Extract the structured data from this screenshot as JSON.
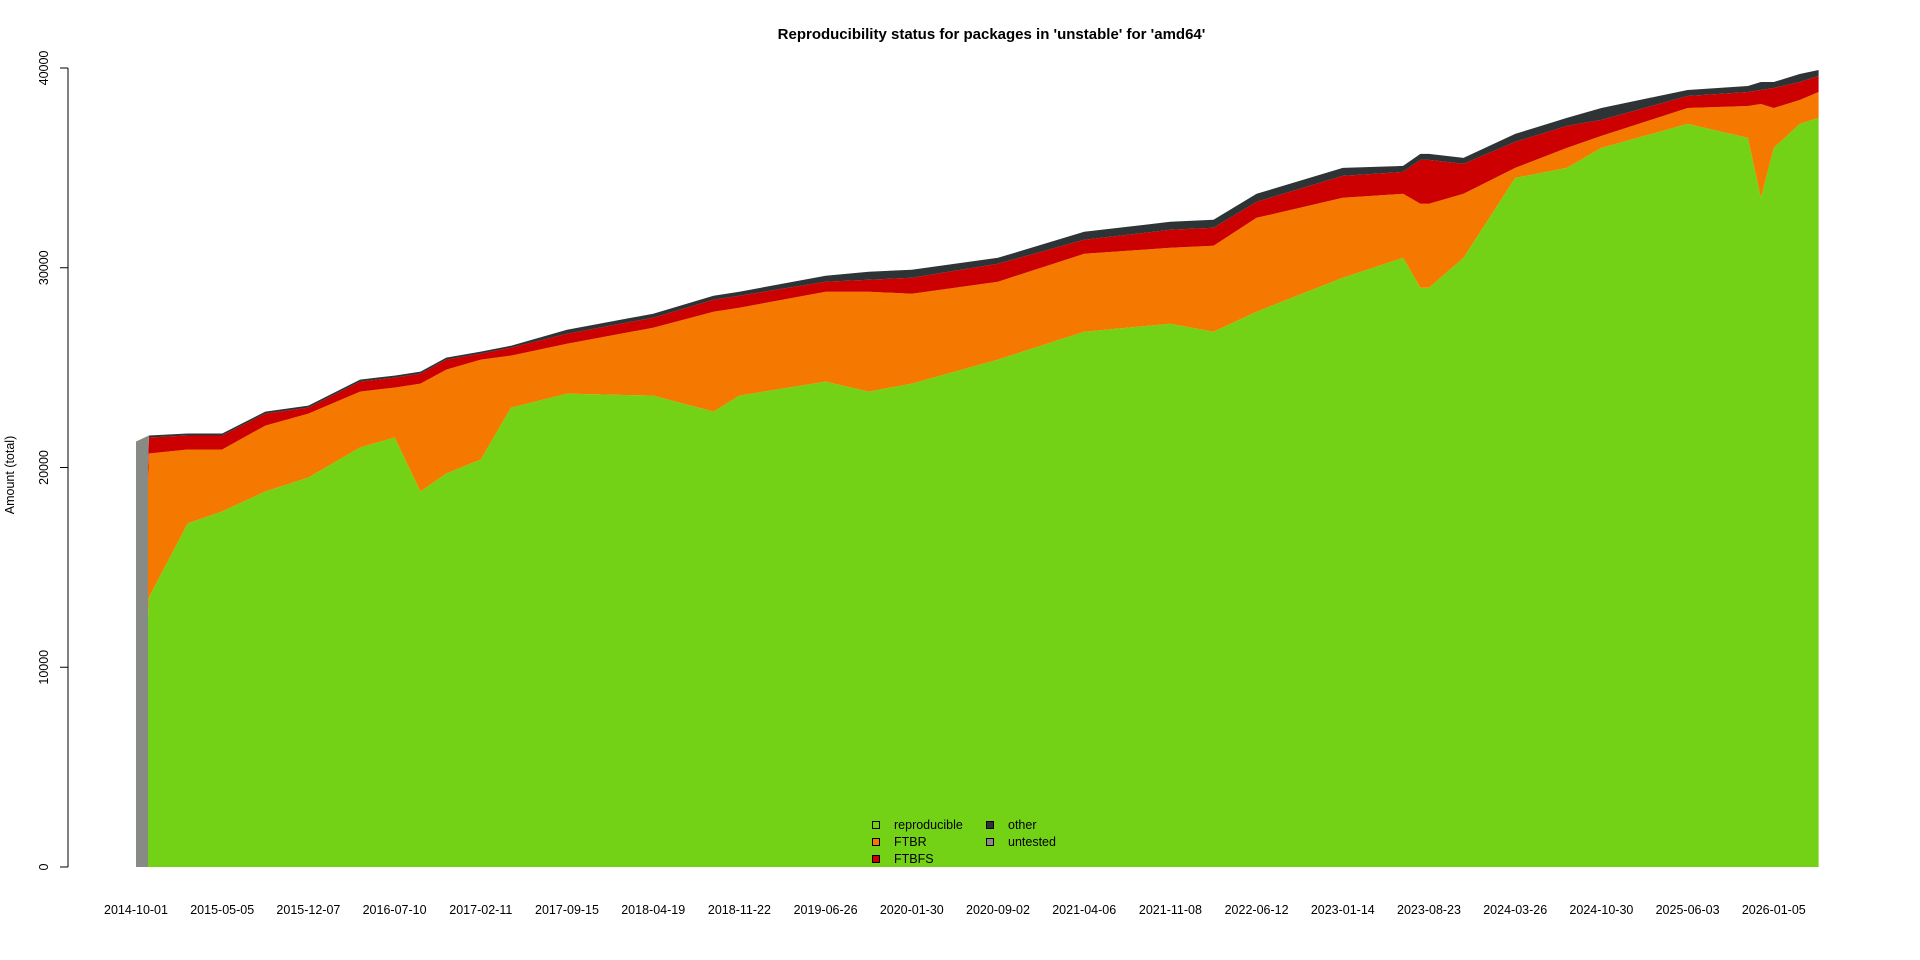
{
  "chart_data": {
    "type": "area",
    "stacked": true,
    "title": "Reproducibility status for packages in 'unstable' for 'amd64'",
    "xlabel": "",
    "ylabel": "Amount (total)",
    "ylim": [
      0,
      40000
    ],
    "yticks": [
      0,
      10000,
      20000,
      30000,
      40000
    ],
    "xtick_labels": [
      "2014-10-01",
      "2015-05-05",
      "2015-12-07",
      "2016-07-10",
      "2017-02-11",
      "2017-09-15",
      "2018-04-19",
      "2018-11-22",
      "2019-06-26",
      "2020-01-30",
      "2020-09-02",
      "2021-04-06",
      "2021-11-08",
      "2022-06-12",
      "2023-01-14",
      "2023-08-23",
      "2024-03-26",
      "2024-10-30",
      "2025-06-03",
      "2026-01-05"
    ],
    "grid": false,
    "legend_position": "bottom-center",
    "legend": [
      {
        "label": "reproducible",
        "color": "#73d216"
      },
      {
        "label": "FTBR",
        "color": "#f57900"
      },
      {
        "label": "FTBFS",
        "color": "#cc0000"
      },
      {
        "label": "other",
        "color": "#2e3436"
      },
      {
        "label": "untested",
        "color": "#888a85"
      }
    ],
    "x": [
      0,
      0.15,
      0.6,
      1.0,
      1.5,
      2.0,
      2.6,
      3.0,
      3.3,
      3.6,
      4.0,
      4.35,
      5.0,
      6.0,
      6.7,
      7.0,
      8.0,
      8.5,
      9.0,
      10.0,
      11.0,
      12.0,
      12.5,
      13.0,
      14.0,
      14.7,
      14.9,
      15.0,
      15.4,
      16.0,
      16.6,
      17.0,
      18.0,
      18.7,
      18.85,
      19.0,
      19.3,
      19.52
    ],
    "series": [
      {
        "name": "reproducible",
        "values": [
          0,
          13500,
          17200,
          17800,
          18800,
          19500,
          21000,
          21500,
          18800,
          19700,
          20400,
          23000,
          23700,
          23600,
          22800,
          23600,
          24300,
          23800,
          24200,
          25400,
          26800,
          27200,
          26800,
          27800,
          29500,
          30500,
          29000,
          29000,
          30500,
          34500,
          35000,
          36000,
          37200,
          36500,
          33500,
          36000,
          37200,
          37500
        ]
      },
      {
        "name": "FTBR",
        "values": [
          0,
          7200,
          3700,
          3100,
          3300,
          3200,
          2800,
          2500,
          5400,
          5200,
          5000,
          2600,
          2500,
          3400,
          5000,
          4400,
          4500,
          5000,
          4500,
          3900,
          3900,
          3800,
          4300,
          4700,
          4000,
          3200,
          4200,
          4200,
          3200,
          500,
          1000,
          600,
          800,
          1600,
          4700,
          2000,
          1200,
          1300
        ]
      },
      {
        "name": "FTBFS",
        "values": [
          0,
          800,
          700,
          700,
          600,
          300,
          500,
          500,
          500,
          500,
          300,
          400,
          500,
          500,
          600,
          600,
          500,
          600,
          800,
          900,
          700,
          900,
          900,
          800,
          1100,
          1100,
          2200,
          2200,
          1500,
          1300,
          1100,
          800,
          600,
          700,
          700,
          1000,
          900,
          800
        ]
      },
      {
        "name": "other",
        "values": [
          0,
          100,
          100,
          100,
          100,
          100,
          100,
          100,
          100,
          100,
          100,
          100,
          200,
          200,
          200,
          200,
          300,
          400,
          400,
          300,
          400,
          400,
          400,
          400,
          400,
          300,
          300,
          300,
          300,
          400,
          400,
          600,
          300,
          300,
          400,
          300,
          400,
          300
        ]
      },
      {
        "name": "untested",
        "values": [
          21300,
          0,
          0,
          0,
          0,
          0,
          0,
          0,
          0,
          0,
          0,
          0,
          0,
          0,
          0,
          0,
          0,
          0,
          0,
          0,
          0,
          0,
          0,
          0,
          0,
          0,
          0,
          0,
          0,
          0,
          0,
          0,
          0,
          0,
          0,
          0,
          0,
          0
        ]
      }
    ]
  }
}
